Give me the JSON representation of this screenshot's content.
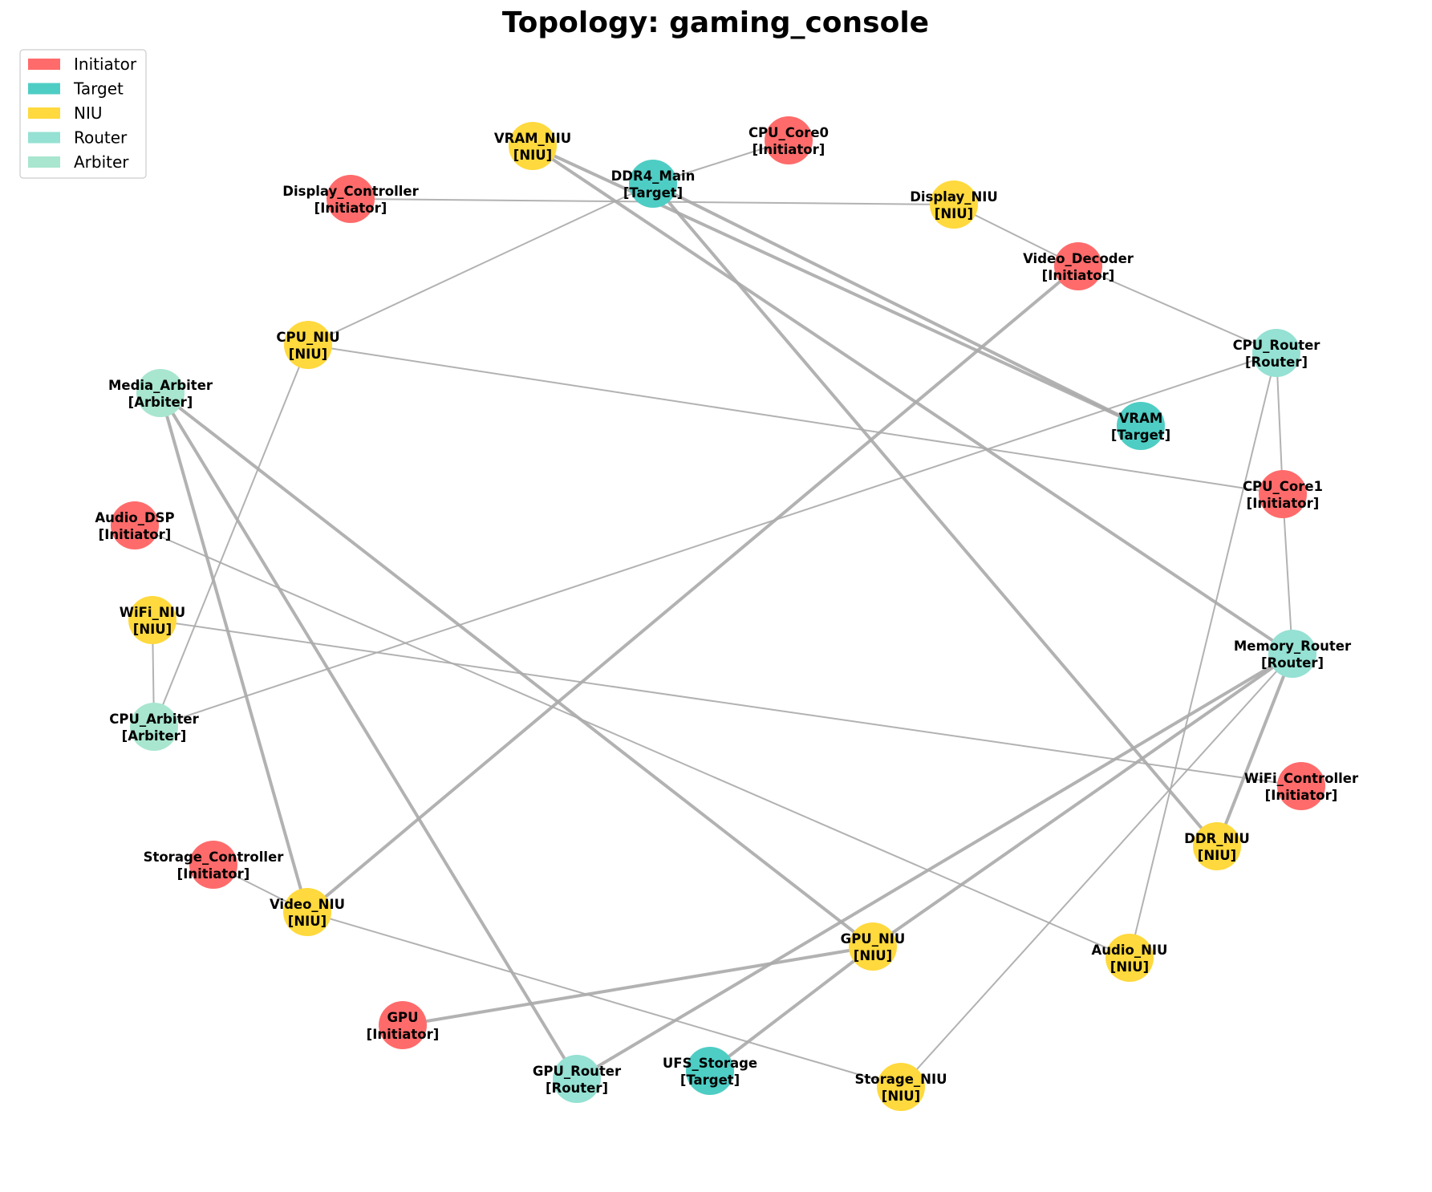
{
  "title": "Topology: gaming_console",
  "legend": [
    {
      "label": "Initiator",
      "color": "#ff6b6b"
    },
    {
      "label": "Target",
      "color": "#4ecdc4"
    },
    {
      "label": "NIU",
      "color": "#ffd93d"
    },
    {
      "label": "Router",
      "color": "#95e1d3"
    },
    {
      "label": "Arbiter",
      "color": "#a8e6cf"
    }
  ],
  "edge_color": "#aaaaaa",
  "nodes": [
    {
      "id": "VRAM_NIU",
      "name": "VRAM_NIU",
      "role": "[NIU]",
      "type": "NIU"
    },
    {
      "id": "CPU_Core0",
      "name": "CPU_Core0",
      "role": "[Initiator]",
      "type": "Initiator"
    },
    {
      "id": "DDR4_Main",
      "name": "DDR4_Main",
      "role": "[Target]",
      "type": "Target"
    },
    {
      "id": "Display_Controller",
      "name": "Display_Controller",
      "role": "[Initiator]",
      "type": "Initiator"
    },
    {
      "id": "Display_NIU",
      "name": "Display_NIU",
      "role": "[NIU]",
      "type": "NIU"
    },
    {
      "id": "Video_Decoder",
      "name": "Video_Decoder",
      "role": "[Initiator]",
      "type": "Initiator"
    },
    {
      "id": "CPU_NIU",
      "name": "CPU_NIU",
      "role": "[NIU]",
      "type": "NIU"
    },
    {
      "id": "CPU_Router",
      "name": "CPU_Router",
      "role": "[Router]",
      "type": "Router"
    },
    {
      "id": "Media_Arbiter",
      "name": "Media_Arbiter",
      "role": "[Arbiter]",
      "type": "Arbiter"
    },
    {
      "id": "VRAM",
      "name": "VRAM",
      "role": "[Target]",
      "type": "Target"
    },
    {
      "id": "CPU_Core1",
      "name": "CPU_Core1",
      "role": "[Initiator]",
      "type": "Initiator"
    },
    {
      "id": "Audio_DSP",
      "name": "Audio_DSP",
      "role": "[Initiator]",
      "type": "Initiator"
    },
    {
      "id": "WiFi_NIU",
      "name": "WiFi_NIU",
      "role": "[NIU]",
      "type": "NIU"
    },
    {
      "id": "Memory_Router",
      "name": "Memory_Router",
      "role": "[Router]",
      "type": "Router"
    },
    {
      "id": "CPU_Arbiter",
      "name": "CPU_Arbiter",
      "role": "[Arbiter]",
      "type": "Arbiter"
    },
    {
      "id": "WiFi_Controller",
      "name": "WiFi_Controller",
      "role": "[Initiator]",
      "type": "Initiator"
    },
    {
      "id": "DDR_NIU",
      "name": "DDR_NIU",
      "role": "[NIU]",
      "type": "NIU"
    },
    {
      "id": "Storage_Controller",
      "name": "Storage_Controller",
      "role": "[Initiator]",
      "type": "Initiator"
    },
    {
      "id": "Video_NIU",
      "name": "Video_NIU",
      "role": "[NIU]",
      "type": "NIU"
    },
    {
      "id": "GPU_NIU",
      "name": "GPU_NIU",
      "role": "[NIU]",
      "type": "NIU"
    },
    {
      "id": "Audio_NIU",
      "name": "Audio_NIU",
      "role": "[NIU]",
      "type": "NIU"
    },
    {
      "id": "GPU",
      "name": "GPU",
      "role": "[Initiator]",
      "type": "Initiator"
    },
    {
      "id": "GPU_Router",
      "name": "GPU_Router",
      "role": "[Router]",
      "type": "Router"
    },
    {
      "id": "UFS_Storage",
      "name": "UFS_Storage",
      "role": "[Target]",
      "type": "Target"
    },
    {
      "id": "Storage_NIU",
      "name": "Storage_NIU",
      "role": "[NIU]",
      "type": "NIU"
    }
  ],
  "edges": [
    {
      "from": "CPU_Core0",
      "to": "DDR4_Main",
      "weight": "thin"
    },
    {
      "from": "DDR4_Main",
      "to": "CPU_NIU",
      "weight": "thin"
    },
    {
      "from": "Display_Controller",
      "to": "Display_NIU",
      "weight": "thin"
    },
    {
      "from": "Display_NIU",
      "to": "Video_Decoder",
      "weight": "thin"
    },
    {
      "from": "Video_Decoder",
      "to": "CPU_Router",
      "weight": "thin"
    },
    {
      "from": "CPU_NIU",
      "to": "CPU_Core1",
      "weight": "thin"
    },
    {
      "from": "CPU_NIU",
      "to": "CPU_Arbiter",
      "weight": "thin"
    },
    {
      "from": "CPU_Router",
      "to": "CPU_Core1",
      "weight": "thin"
    },
    {
      "from": "CPU_Router",
      "to": "CPU_Arbiter",
      "weight": "thin"
    },
    {
      "from": "CPU_Router",
      "to": "Audio_NIU",
      "weight": "thin"
    },
    {
      "from": "CPU_Core1",
      "to": "Memory_Router",
      "weight": "thin"
    },
    {
      "from": "Audio_DSP",
      "to": "Audio_NIU",
      "weight": "thin"
    },
    {
      "from": "WiFi_NIU",
      "to": "CPU_Arbiter",
      "weight": "thin"
    },
    {
      "from": "WiFi_NIU",
      "to": "WiFi_Controller",
      "weight": "thin"
    },
    {
      "from": "Memory_Router",
      "to": "Storage_NIU",
      "weight": "thin"
    },
    {
      "from": "Storage_Controller",
      "to": "Video_NIU",
      "weight": "thin"
    },
    {
      "from": "Video_NIU",
      "to": "Storage_NIU",
      "weight": "thin"
    },
    {
      "from": "VRAM_NIU",
      "to": "VRAM",
      "weight": "thick"
    },
    {
      "from": "VRAM_NIU",
      "to": "Memory_Router",
      "weight": "thick"
    },
    {
      "from": "DDR4_Main",
      "to": "VRAM",
      "weight": "thick"
    },
    {
      "from": "DDR4_Main",
      "to": "DDR_NIU",
      "weight": "thick"
    },
    {
      "from": "Video_Decoder",
      "to": "Video_NIU",
      "weight": "thick"
    },
    {
      "from": "Media_Arbiter",
      "to": "Video_NIU",
      "weight": "thick"
    },
    {
      "from": "Media_Arbiter",
      "to": "GPU_NIU",
      "weight": "thick"
    },
    {
      "from": "Media_Arbiter",
      "to": "GPU_Router",
      "weight": "thick"
    },
    {
      "from": "Memory_Router",
      "to": "DDR_NIU",
      "weight": "thick"
    },
    {
      "from": "Memory_Router",
      "to": "GPU_NIU",
      "weight": "thick"
    },
    {
      "from": "Memory_Router",
      "to": "GPU_Router",
      "weight": "thick"
    },
    {
      "from": "GPU",
      "to": "GPU_NIU",
      "weight": "thick"
    },
    {
      "from": "GPU_NIU",
      "to": "UFS_Storage",
      "weight": "thick"
    }
  ]
}
